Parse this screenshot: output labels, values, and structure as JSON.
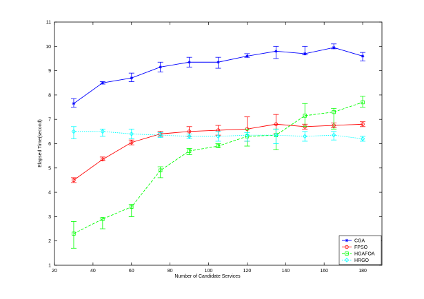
{
  "chart_data": {
    "type": "line",
    "title": "",
    "xlabel": "Number of Candidate Services",
    "ylabel": "Elapsed Time(second)",
    "xlim": [
      20,
      190
    ],
    "ylim": [
      1,
      11
    ],
    "xticks": [
      20,
      40,
      60,
      80,
      100,
      120,
      140,
      160,
      180
    ],
    "yticks": [
      1,
      2,
      3,
      4,
      5,
      6,
      7,
      8,
      9,
      10,
      11
    ],
    "grid": false,
    "legend_position": "bottom-right",
    "x": [
      30,
      45,
      60,
      75,
      90,
      105,
      120,
      135,
      150,
      165,
      180
    ],
    "series": [
      {
        "name": "CGA",
        "color": "#0000ff",
        "marker": "star",
        "line_style": "solid",
        "values": [
          7.65,
          8.5,
          8.7,
          9.15,
          9.35,
          9.35,
          9.6,
          9.8,
          9.7,
          9.95,
          9.6
        ],
        "error_low": [
          7.5,
          8.45,
          8.55,
          8.95,
          9.15,
          9.1,
          9.55,
          9.5,
          9.65,
          9.9,
          9.4
        ],
        "error_high": [
          7.85,
          8.55,
          8.9,
          9.35,
          9.55,
          9.55,
          9.7,
          10.0,
          10.0,
          10.1,
          9.75
        ]
      },
      {
        "name": "FPSO",
        "color": "#ff0000",
        "marker": "circle",
        "line_style": "solid",
        "values": [
          4.5,
          5.35,
          6.05,
          6.4,
          6.5,
          6.55,
          6.6,
          6.8,
          6.7,
          6.75,
          6.8
        ],
        "error_low": [
          4.4,
          5.3,
          5.95,
          6.3,
          6.3,
          6.35,
          6.1,
          6.4,
          6.6,
          6.65,
          6.7
        ],
        "error_high": [
          4.6,
          5.45,
          6.15,
          6.5,
          6.7,
          6.75,
          7.1,
          7.2,
          6.8,
          6.85,
          6.9
        ]
      },
      {
        "name": "HGAFOA",
        "color": "#00ff00",
        "marker": "square",
        "line_style": "dashed",
        "values": [
          2.3,
          2.9,
          3.4,
          4.9,
          5.7,
          5.9,
          6.3,
          6.35,
          7.15,
          7.3,
          7.7
        ],
        "error_low": [
          1.7,
          2.5,
          3.0,
          4.6,
          5.55,
          5.85,
          5.9,
          5.75,
          6.7,
          6.6,
          7.5
        ],
        "error_high": [
          2.8,
          2.95,
          3.5,
          5.05,
          5.8,
          6.0,
          6.6,
          6.6,
          7.65,
          7.45,
          7.95
        ]
      },
      {
        "name": "HRGO",
        "color": "#00ffff",
        "marker": "diamond",
        "line_style": "dotted",
        "values": [
          6.5,
          6.5,
          6.4,
          6.35,
          6.3,
          6.3,
          6.35,
          6.35,
          6.3,
          6.35,
          6.2
        ],
        "error_low": [
          6.2,
          6.3,
          6.2,
          6.25,
          6.2,
          6.1,
          6.1,
          6.0,
          6.1,
          6.15,
          6.1
        ],
        "error_high": [
          6.7,
          6.6,
          6.6,
          6.45,
          6.4,
          6.5,
          6.45,
          6.6,
          6.5,
          6.5,
          6.3
        ]
      }
    ]
  }
}
